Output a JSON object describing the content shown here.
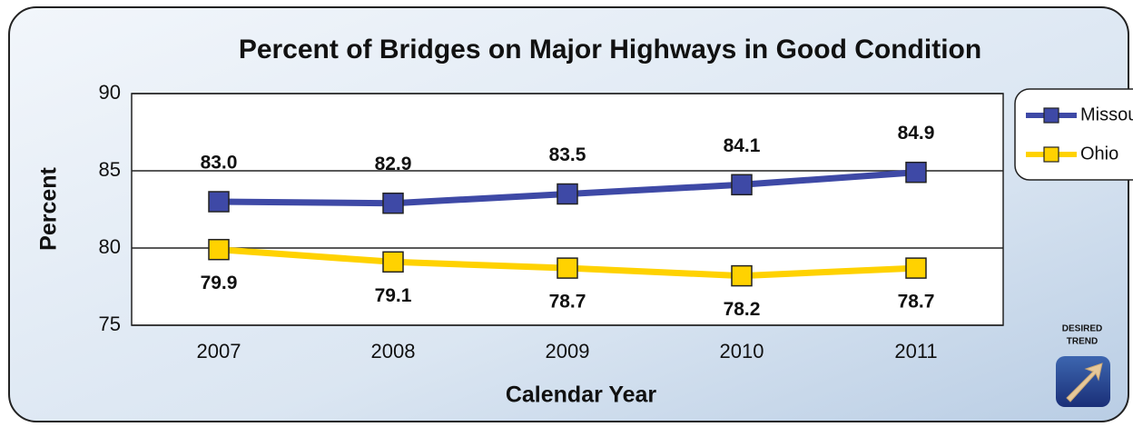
{
  "chart_data": {
    "type": "line",
    "title": "Percent of Bridges on Major Highways in Good Condition",
    "x_label": "Calendar Year",
    "y_label": "Percent",
    "categories": [
      "2007",
      "2008",
      "2009",
      "2010",
      "2011"
    ],
    "series": [
      {
        "name": "Missouri",
        "color": "#3e49a6",
        "values": [
          83.0,
          82.9,
          83.5,
          84.1,
          84.9
        ],
        "value_labels": [
          "83.0",
          "82.9",
          "83.5",
          "84.1",
          "84.9"
        ]
      },
      {
        "name": "Ohio",
        "color": "#ffd200",
        "values": [
          79.9,
          79.1,
          78.7,
          78.2,
          78.7
        ],
        "value_labels": [
          "79.9",
          "79.1",
          "78.7",
          "78.2",
          "78.7"
        ]
      }
    ],
    "ylim": [
      75,
      90
    ],
    "yticks": [
      75,
      80,
      85,
      90
    ],
    "grid": true,
    "legend": "upper right",
    "annotations": [
      "DESIRED",
      "TREND"
    ]
  }
}
